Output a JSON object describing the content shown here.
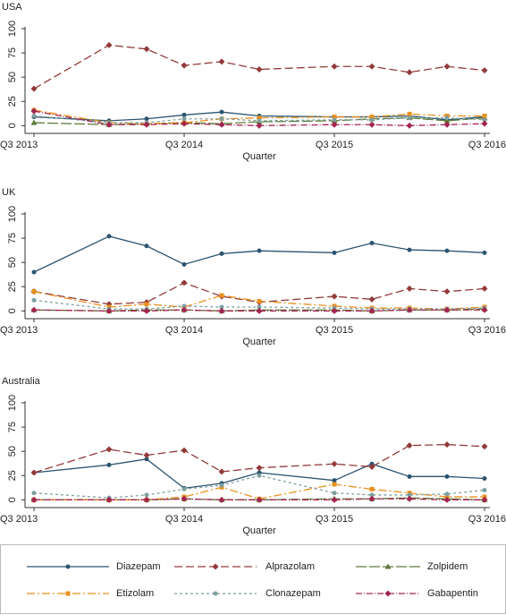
{
  "chart_data": [
    {
      "type": "line",
      "title": "USA",
      "x_label": "Quarter",
      "x": [
        0,
        2,
        3,
        4,
        5,
        6,
        8,
        9,
        10,
        11,
        12
      ],
      "xlim": [
        0,
        12
      ],
      "xticks": [
        {
          "value": 0,
          "label": "Q3 2013"
        },
        {
          "value": 4,
          "label": "Q3 2014"
        },
        {
          "value": 8,
          "label": "Q3 2015"
        },
        {
          "value": 12,
          "label": "Q3 2016"
        }
      ],
      "ylim": [
        -8,
        100
      ],
      "yticks": [
        0,
        25,
        50,
        75,
        100
      ],
      "series": [
        {
          "name": "Diazepam",
          "color": "#2b5470",
          "dash": "solid",
          "marker": "circle",
          "values": [
            9,
            5,
            7,
            11,
            14,
            10,
            9,
            9,
            10,
            6,
            9
          ]
        },
        {
          "name": "Alprazolam",
          "color": "#923a3a",
          "dash": "dash",
          "marker": "diamond",
          "values": [
            38,
            83,
            79,
            62,
            66,
            58,
            61,
            61,
            55,
            61,
            57
          ]
        },
        {
          "name": "Zolpidem",
          "color": "#5f7a3a",
          "dash": "longdash",
          "marker": "triangle",
          "values": [
            3,
            1,
            2,
            3,
            2,
            4,
            5,
            7,
            8,
            5,
            8
          ]
        },
        {
          "name": "Etizolam",
          "color": "#e8901e",
          "dash": "dashdot",
          "marker": "square",
          "values": [
            16,
            3,
            2,
            3,
            7,
            8,
            9,
            9,
            12,
            10,
            10
          ]
        },
        {
          "name": "Clonazepam",
          "color": "#7f9f9f",
          "dash": "shortdash",
          "marker": "circle",
          "values": [
            10,
            3,
            3,
            7,
            7,
            5,
            6,
            6,
            8,
            8,
            6
          ]
        },
        {
          "name": "Gabapentin",
          "color": "#a3244f",
          "dash": "longdashdot",
          "marker": "diamond",
          "values": [
            15,
            1,
            1,
            2,
            1,
            0,
            1,
            1,
            0,
            1,
            2
          ]
        }
      ]
    },
    {
      "type": "line",
      "title": "UK",
      "x_label": "Quarter",
      "x": [
        0,
        2,
        3,
        4,
        5,
        6,
        8,
        9,
        10,
        11,
        12
      ],
      "xlim": [
        0,
        12
      ],
      "xticks": [
        {
          "value": 0,
          "label": "Q3 2013"
        },
        {
          "value": 4,
          "label": "Q3 2014"
        },
        {
          "value": 8,
          "label": "Q3 2015"
        },
        {
          "value": 12,
          "label": "Q3 2016"
        }
      ],
      "ylim": [
        -8,
        100
      ],
      "yticks": [
        0,
        25,
        50,
        75,
        100
      ],
      "series": [
        {
          "name": "Diazepam",
          "color": "#2b5470",
          "dash": "solid",
          "marker": "circle",
          "values": [
            40,
            77,
            67,
            48,
            59,
            62,
            60,
            70,
            63,
            62,
            60
          ]
        },
        {
          "name": "Alprazolam",
          "color": "#923a3a",
          "dash": "dash",
          "marker": "diamond",
          "values": [
            20,
            7,
            9,
            29,
            15,
            9,
            15,
            12,
            23,
            20,
            23
          ]
        },
        {
          "name": "Zolpidem",
          "color": "#5f7a3a",
          "dash": "longdash",
          "marker": "triangle",
          "values": [
            1,
            0,
            1,
            1,
            0,
            1,
            1,
            0,
            1,
            1,
            2
          ]
        },
        {
          "name": "Etizolam",
          "color": "#e8901e",
          "dash": "dashdot",
          "marker": "square",
          "values": [
            20,
            4,
            7,
            4,
            16,
            10,
            5,
            3,
            3,
            2,
            4
          ]
        },
        {
          "name": "Clonazepam",
          "color": "#7f9f9f",
          "dash": "shortdash",
          "marker": "circle",
          "values": [
            11,
            2,
            2,
            5,
            4,
            4,
            3,
            2,
            2,
            2,
            3
          ]
        },
        {
          "name": "Gabapentin",
          "color": "#a3244f",
          "dash": "longdashdot",
          "marker": "diamond",
          "values": [
            1,
            0,
            0,
            1,
            0,
            0,
            0,
            0,
            1,
            1,
            1
          ]
        }
      ]
    },
    {
      "type": "line",
      "title": "Australia",
      "x_label": "Quarter",
      "x": [
        0,
        2,
        3,
        4,
        5,
        6,
        8,
        9,
        10,
        11,
        12
      ],
      "xlim": [
        0,
        12
      ],
      "xticks": [
        {
          "value": 0,
          "label": "Q3 2013"
        },
        {
          "value": 4,
          "label": "Q3 2014"
        },
        {
          "value": 8,
          "label": "Q3 2015"
        },
        {
          "value": 12,
          "label": "Q3 2016"
        }
      ],
      "ylim": [
        -8,
        100
      ],
      "yticks": [
        0,
        25,
        50,
        75,
        100
      ],
      "series": [
        {
          "name": "Diazepam",
          "color": "#2b5470",
          "dash": "solid",
          "marker": "circle",
          "values": [
            28,
            36,
            42,
            12,
            17,
            28,
            20,
            37,
            24,
            24,
            22
          ]
        },
        {
          "name": "Alprazolam",
          "color": "#923a3a",
          "dash": "dash",
          "marker": "diamond",
          "values": [
            28,
            52,
            46,
            51,
            29,
            33,
            37,
            34,
            56,
            57,
            55
          ]
        },
        {
          "name": "Zolpidem",
          "color": "#5f7a3a",
          "dash": "longdash",
          "marker": "triangle",
          "values": [
            0,
            0,
            0,
            1,
            0,
            0,
            1,
            1,
            2,
            1,
            0
          ]
        },
        {
          "name": "Etizolam",
          "color": "#e8901e",
          "dash": "dashdot",
          "marker": "square",
          "values": [
            0,
            0,
            0,
            3,
            13,
            1,
            16,
            11,
            7,
            3,
            3
          ]
        },
        {
          "name": "Clonazepam",
          "color": "#7f9f9f",
          "dash": "shortdash",
          "marker": "circle",
          "values": [
            7,
            2,
            5,
            11,
            15,
            25,
            7,
            5,
            5,
            6,
            10
          ]
        },
        {
          "name": "Gabapentin",
          "color": "#a3244f",
          "dash": "longdashdot",
          "marker": "diamond",
          "values": [
            0,
            0,
            0,
            1,
            0,
            0,
            0,
            1,
            1,
            0,
            0
          ]
        }
      ]
    }
  ]
}
